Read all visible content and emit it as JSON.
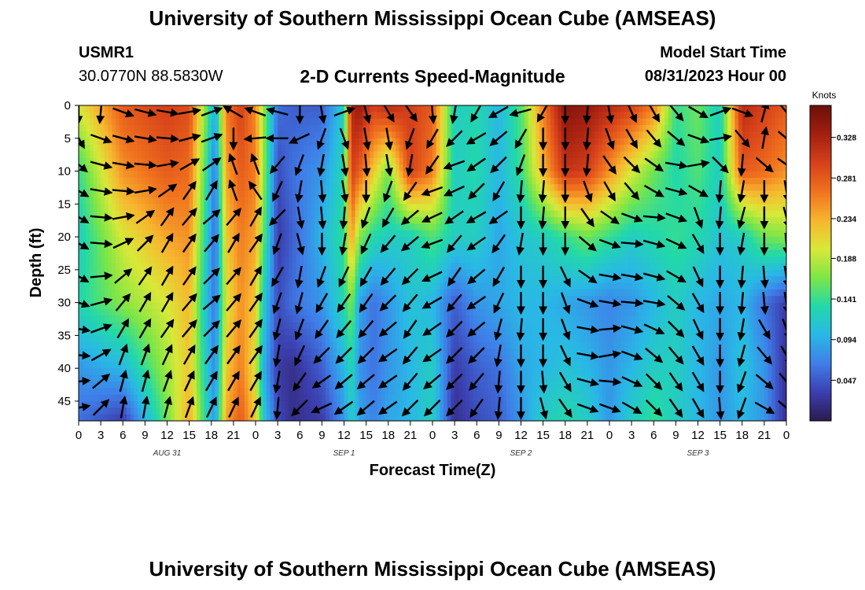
{
  "header": {
    "title": "University of Southern Mississippi Ocean Cube (AMSEAS)",
    "station": "USMR1",
    "coords": "30.0770N  88.5830W",
    "plot_title": "2-D Currents Speed-Magnitude",
    "model_start_label": "Model Start Time",
    "model_start_value": "08/31/2023 Hour 00"
  },
  "footer": {
    "title": "University of Southern Mississippi Ocean Cube (AMSEAS)"
  },
  "chart_data": {
    "type": "heatmap",
    "title": "2-D Currents Speed-Magnitude",
    "xlabel": "Forecast Time(Z)",
    "ylabel": "Depth (ft)",
    "x_ticks": [
      "0",
      "3",
      "6",
      "9",
      "12",
      "15",
      "18",
      "21",
      "0",
      "3",
      "6",
      "9",
      "12",
      "15",
      "18",
      "21",
      "0",
      "3",
      "6",
      "9",
      "12",
      "15",
      "18",
      "21",
      "0",
      "3",
      "6",
      "9",
      "12",
      "15",
      "18",
      "21",
      "0"
    ],
    "x_hours": [
      0,
      3,
      6,
      9,
      12,
      15,
      18,
      21,
      24,
      27,
      30,
      33,
      36,
      39,
      42,
      45,
      48,
      51,
      54,
      57,
      60,
      63,
      66,
      69,
      72,
      75,
      78,
      81,
      84,
      87,
      90,
      93,
      96
    ],
    "date_labels": [
      {
        "label": "AUG 31",
        "hour": 12
      },
      {
        "label": "SEP 1",
        "hour": 36
      },
      {
        "label": "SEP 2",
        "hour": 60
      },
      {
        "label": "SEP 3",
        "hour": 84
      }
    ],
    "y_ticks": [
      0,
      5,
      10,
      15,
      20,
      25,
      30,
      35,
      40,
      45
    ],
    "xlim": [
      0,
      96
    ],
    "ylim": [
      0,
      48
    ],
    "colorbar": {
      "title": "Knots",
      "ticks": [
        0.047,
        0.094,
        0.141,
        0.188,
        0.234,
        0.281,
        0.328
      ],
      "range": [
        0.0,
        0.365
      ],
      "colors": [
        "#2c1a4e",
        "#3c3fb0",
        "#3f7ee8",
        "#29b8e6",
        "#22d9a8",
        "#7ee645",
        "#d9e838",
        "#f7b52e",
        "#f0711e",
        "#d6401a",
        "#a31f10",
        "#6b0f08"
      ]
    },
    "arrow_columns_hours": [
      0,
      3,
      6,
      9,
      12,
      15,
      18,
      21,
      24,
      27,
      30,
      33,
      36,
      39,
      42,
      45,
      48,
      51,
      54,
      57,
      60,
      63,
      66,
      69,
      72,
      75,
      78,
      81,
      84,
      87,
      90,
      93,
      96
    ],
    "arrow_rows_ft": [
      1,
      5,
      9,
      13,
      17,
      21,
      26,
      30,
      34,
      38,
      42,
      46
    ],
    "speed_grid": {
      "hours": [
        0,
        6,
        12,
        15,
        17,
        18.5,
        20,
        22,
        24,
        25,
        27,
        29,
        33,
        36,
        37,
        38,
        40,
        42,
        45,
        48,
        51,
        54,
        57,
        60,
        63,
        66,
        69,
        72,
        75,
        78,
        81,
        84,
        87,
        90,
        93,
        96
      ],
      "depths": [
        0,
        10,
        20,
        30,
        40,
        48
      ],
      "values": [
        [
          0.2,
          0.28,
          0.3,
          0.29,
          0.18,
          0.09,
          0.26,
          0.3,
          0.25,
          0.18,
          0.06,
          0.05,
          0.05,
          0.12,
          0.32,
          0.34,
          0.3,
          0.32,
          0.3,
          0.28,
          0.12,
          0.13,
          0.1,
          0.15,
          0.26,
          0.35,
          0.34,
          0.32,
          0.3,
          0.26,
          0.14,
          0.16,
          0.12,
          0.32,
          0.3,
          0.28
        ],
        [
          0.14,
          0.25,
          0.28,
          0.27,
          0.16,
          0.06,
          0.24,
          0.28,
          0.26,
          0.18,
          0.04,
          0.06,
          0.08,
          0.13,
          0.3,
          0.28,
          0.22,
          0.16,
          0.3,
          0.26,
          0.12,
          0.13,
          0.1,
          0.14,
          0.23,
          0.31,
          0.3,
          0.25,
          0.2,
          0.16,
          0.13,
          0.15,
          0.12,
          0.28,
          0.27,
          0.25
        ],
        [
          0.12,
          0.2,
          0.24,
          0.25,
          0.14,
          0.05,
          0.22,
          0.26,
          0.24,
          0.16,
          0.03,
          0.05,
          0.1,
          0.14,
          0.25,
          0.17,
          0.13,
          0.12,
          0.12,
          0.15,
          0.12,
          0.12,
          0.09,
          0.11,
          0.12,
          0.14,
          0.16,
          0.14,
          0.12,
          0.13,
          0.14,
          0.13,
          0.11,
          0.12,
          0.16,
          0.17
        ],
        [
          0.13,
          0.17,
          0.2,
          0.23,
          0.12,
          0.06,
          0.2,
          0.25,
          0.22,
          0.12,
          0.04,
          0.06,
          0.08,
          0.13,
          0.17,
          0.09,
          0.06,
          0.08,
          0.11,
          0.1,
          0.05,
          0.08,
          0.09,
          0.1,
          0.1,
          0.09,
          0.08,
          0.07,
          0.08,
          0.1,
          0.12,
          0.1,
          0.09,
          0.1,
          0.06,
          0.03
        ],
        [
          0.08,
          0.1,
          0.18,
          0.22,
          0.13,
          0.07,
          0.22,
          0.26,
          0.2,
          0.1,
          0.03,
          0.02,
          0.05,
          0.1,
          0.13,
          0.08,
          0.06,
          0.08,
          0.1,
          0.12,
          0.03,
          0.05,
          0.06,
          0.09,
          0.1,
          0.11,
          0.1,
          0.08,
          0.1,
          0.12,
          0.12,
          0.1,
          0.08,
          0.11,
          0.08,
          0.02
        ],
        [
          0.06,
          0.03,
          0.16,
          0.24,
          0.14,
          0.08,
          0.24,
          0.28,
          0.22,
          0.12,
          0.04,
          0.02,
          0.03,
          0.08,
          0.12,
          0.09,
          0.07,
          0.09,
          0.1,
          0.12,
          0.02,
          0.04,
          0.05,
          0.08,
          0.12,
          0.13,
          0.12,
          0.08,
          0.12,
          0.14,
          0.12,
          0.1,
          0.08,
          0.1,
          0.08,
          0.02
        ]
      ]
    },
    "arrow_angles_deg": [
      [
        270,
        265,
        340,
        345,
        350,
        10,
        20,
        150,
        160,
        165,
        270,
        280,
        20,
        285,
        300,
        305,
        275,
        260,
        240,
        210,
        195,
        240,
        270,
        265,
        280,
        295,
        300,
        310,
        330,
        20,
        340,
        75,
        310
      ],
      [
        300,
        340,
        345,
        350,
        355,
        15,
        20,
        270,
        185,
        180,
        205,
        250,
        290,
        280,
        280,
        250,
        240,
        225,
        210,
        220,
        240,
        270,
        270,
        265,
        290,
        300,
        310,
        320,
        340,
        10,
        310,
        80,
        320
      ],
      [
        320,
        345,
        350,
        355,
        10,
        30,
        35,
        110,
        110,
        230,
        250,
        260,
        280,
        275,
        280,
        260,
        235,
        200,
        215,
        225,
        250,
        270,
        270,
        265,
        305,
        315,
        325,
        350,
        10,
        315,
        265,
        320,
        325
      ],
      [
        330,
        350,
        355,
        10,
        35,
        55,
        60,
        110,
        125,
        245,
        260,
        275,
        280,
        270,
        250,
        235,
        200,
        205,
        225,
        240,
        265,
        265,
        270,
        290,
        300,
        310,
        330,
        345,
        330,
        265,
        260,
        270,
        280
      ],
      [
        330,
        355,
        10,
        35,
        55,
        50,
        40,
        50,
        60,
        225,
        280,
        275,
        265,
        250,
        240,
        220,
        205,
        215,
        210,
        215,
        270,
        265,
        270,
        305,
        325,
        340,
        355,
        340,
        290,
        265,
        255,
        270,
        285
      ],
      [
        330,
        355,
        25,
        45,
        60,
        55,
        50,
        60,
        55,
        250,
        285,
        270,
        260,
        245,
        230,
        220,
        200,
        230,
        215,
        235,
        260,
        270,
        270,
        320,
        340,
        355,
        345,
        335,
        300,
        270,
        260,
        270,
        275
      ],
      [
        330,
        5,
        40,
        55,
        60,
        55,
        45,
        50,
        60,
        240,
        260,
        250,
        245,
        240,
        230,
        225,
        205,
        235,
        220,
        240,
        270,
        270,
        295,
        325,
        350,
        350,
        345,
        330,
        295,
        270,
        265,
        275,
        280
      ],
      [
        340,
        15,
        50,
        60,
        60,
        50,
        40,
        50,
        55,
        250,
        255,
        240,
        235,
        235,
        225,
        230,
        210,
        230,
        215,
        245,
        270,
        270,
        290,
        340,
        350,
        355,
        350,
        320,
        300,
        270,
        265,
        275,
        280
      ],
      [
        350,
        20,
        60,
        60,
        55,
        50,
        45,
        50,
        55,
        255,
        250,
        235,
        230,
        230,
        220,
        235,
        215,
        225,
        220,
        255,
        265,
        270,
        290,
        350,
        5,
        345,
        335,
        315,
        295,
        270,
        260,
        300,
        290
      ],
      [
        355,
        30,
        70,
        70,
        65,
        60,
        55,
        55,
        55,
        260,
        245,
        225,
        225,
        225,
        215,
        230,
        215,
        225,
        225,
        260,
        270,
        270,
        295,
        350,
        10,
        340,
        320,
        310,
        300,
        270,
        255,
        310,
        300
      ],
      [
        5,
        40,
        75,
        75,
        70,
        65,
        60,
        60,
        60,
        260,
        235,
        215,
        220,
        220,
        215,
        230,
        220,
        225,
        230,
        265,
        270,
        275,
        300,
        345,
        355,
        335,
        315,
        305,
        300,
        270,
        250,
        320,
        310
      ],
      [
        10,
        45,
        80,
        80,
        75,
        70,
        65,
        65,
        65,
        265,
        225,
        205,
        215,
        220,
        215,
        225,
        225,
        225,
        235,
        265,
        270,
        285,
        305,
        340,
        340,
        330,
        315,
        305,
        300,
        275,
        250,
        330,
        320
      ]
    ]
  }
}
